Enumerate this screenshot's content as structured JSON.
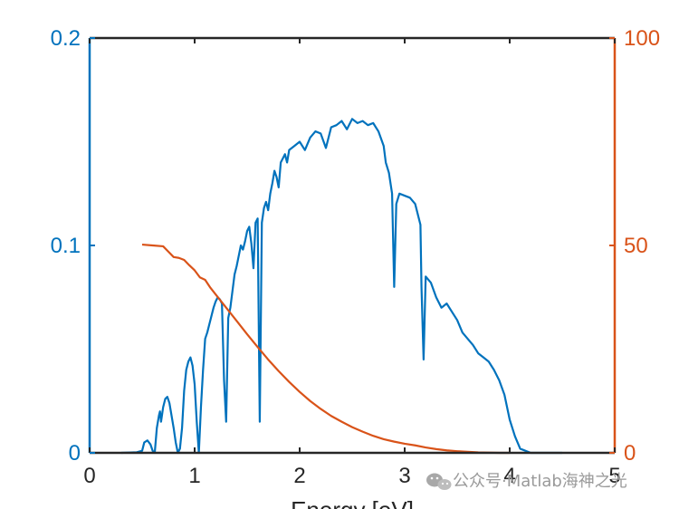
{
  "chart_data": {
    "type": "line",
    "xlabel": "Energy [eV]",
    "xlim": [
      0,
      5
    ],
    "xticks": [
      "0",
      "1",
      "2",
      "3",
      "4",
      "5"
    ],
    "y_left": {
      "lim": [
        0,
        0.2
      ],
      "ticks": [
        "0",
        "0.1",
        "0.2"
      ],
      "color": "#0072BD"
    },
    "y_right": {
      "lim": [
        0,
        100
      ],
      "ticks": [
        "0",
        "50",
        "100"
      ],
      "color": "#D95319"
    },
    "series": [
      {
        "axis": "left",
        "color": "#0072BD",
        "x": [
          0.3,
          0.45,
          0.5,
          0.52,
          0.55,
          0.58,
          0.6,
          0.62,
          0.64,
          0.66,
          0.67,
          0.68,
          0.7,
          0.72,
          0.74,
          0.76,
          0.78,
          0.8,
          0.82,
          0.84,
          0.86,
          0.88,
          0.9,
          0.92,
          0.94,
          0.96,
          0.98,
          1.0,
          1.02,
          1.04,
          1.06,
          1.08,
          1.1,
          1.12,
          1.14,
          1.16,
          1.18,
          1.2,
          1.22,
          1.24,
          1.26,
          1.28,
          1.3,
          1.32,
          1.34,
          1.36,
          1.38,
          1.4,
          1.42,
          1.44,
          1.46,
          1.48,
          1.5,
          1.52,
          1.54,
          1.56,
          1.58,
          1.6,
          1.62,
          1.64,
          1.66,
          1.68,
          1.7,
          1.72,
          1.74,
          1.76,
          1.78,
          1.8,
          1.82,
          1.84,
          1.86,
          1.88,
          1.9,
          1.95,
          2.0,
          2.05,
          2.1,
          2.15,
          2.2,
          2.25,
          2.3,
          2.35,
          2.4,
          2.45,
          2.5,
          2.55,
          2.6,
          2.65,
          2.7,
          2.75,
          2.8,
          2.82,
          2.85,
          2.88,
          2.9,
          2.92,
          2.95,
          3.0,
          3.05,
          3.1,
          3.15,
          3.16,
          3.18,
          3.2,
          3.25,
          3.3,
          3.35,
          3.4,
          3.45,
          3.5,
          3.55,
          3.6,
          3.65,
          3.7,
          3.75,
          3.8,
          3.85,
          3.9,
          3.95,
          4.0,
          4.05,
          4.1,
          4.2,
          4.3,
          4.4,
          4.5
        ],
        "y": [
          0.0,
          0.0003,
          0.001,
          0.005,
          0.006,
          0.004,
          0.001,
          0.0,
          0.012,
          0.018,
          0.02,
          0.015,
          0.022,
          0.026,
          0.027,
          0.024,
          0.018,
          0.012,
          0.005,
          0.0,
          0.002,
          0.012,
          0.03,
          0.04,
          0.044,
          0.046,
          0.042,
          0.033,
          0.015,
          0.0,
          0.022,
          0.04,
          0.055,
          0.058,
          0.062,
          0.066,
          0.07,
          0.073,
          0.075,
          0.074,
          0.072,
          0.035,
          0.015,
          0.065,
          0.07,
          0.078,
          0.086,
          0.09,
          0.095,
          0.1,
          0.098,
          0.102,
          0.107,
          0.109,
          0.101,
          0.089,
          0.111,
          0.113,
          0.015,
          0.111,
          0.118,
          0.121,
          0.117,
          0.125,
          0.13,
          0.136,
          0.133,
          0.128,
          0.14,
          0.142,
          0.144,
          0.14,
          0.146,
          0.148,
          0.15,
          0.146,
          0.152,
          0.155,
          0.154,
          0.147,
          0.157,
          0.158,
          0.16,
          0.156,
          0.161,
          0.159,
          0.16,
          0.158,
          0.159,
          0.155,
          0.148,
          0.14,
          0.135,
          0.125,
          0.08,
          0.12,
          0.125,
          0.124,
          0.123,
          0.12,
          0.11,
          0.08,
          0.045,
          0.085,
          0.082,
          0.075,
          0.07,
          0.072,
          0.068,
          0.064,
          0.058,
          0.055,
          0.052,
          0.048,
          0.046,
          0.044,
          0.04,
          0.035,
          0.028,
          0.016,
          0.008,
          0.002,
          0.0,
          0.0,
          0.0,
          0.0
        ]
      },
      {
        "axis": "right",
        "color": "#D95319",
        "x": [
          0.5,
          0.6,
          0.7,
          0.75,
          0.8,
          0.85,
          0.9,
          0.95,
          1.0,
          1.05,
          1.1,
          1.15,
          1.2,
          1.3,
          1.4,
          1.5,
          1.6,
          1.7,
          1.8,
          1.9,
          2.0,
          2.1,
          2.2,
          2.3,
          2.4,
          2.5,
          2.6,
          2.7,
          2.8,
          2.9,
          3.0,
          3.1,
          3.2,
          3.3,
          3.4,
          3.5,
          3.6,
          3.7,
          3.8,
          3.9,
          4.0
        ],
        "y": [
          50.2,
          50.0,
          49.8,
          48.5,
          47.2,
          47.0,
          46.5,
          45.2,
          44.0,
          42.3,
          41.7,
          39.8,
          38.2,
          35.0,
          31.8,
          28.6,
          25.5,
          22.5,
          19.7,
          17.1,
          14.7,
          12.5,
          10.6,
          8.9,
          7.5,
          6.2,
          5.1,
          4.1,
          3.3,
          2.7,
          2.2,
          1.8,
          1.3,
          0.9,
          0.6,
          0.4,
          0.25,
          0.12,
          0.05,
          0.0,
          0.0
        ]
      }
    ]
  },
  "watermark": {
    "text": "公众号·Matlab海神之光",
    "icon": "wechat-icon"
  }
}
